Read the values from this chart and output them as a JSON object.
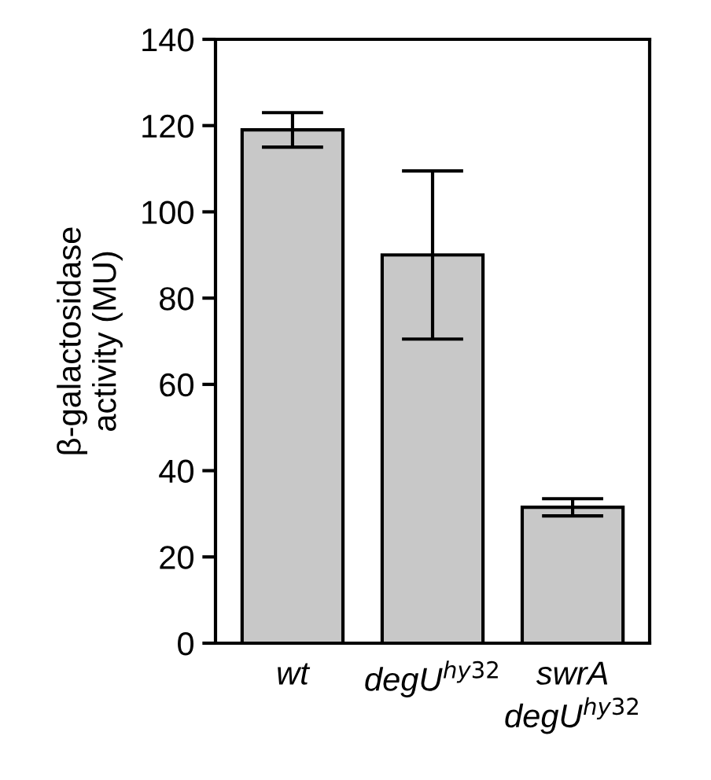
{
  "chart_data": {
    "type": "bar",
    "ylabel": "β-galactosidase\nactivity (MU)",
    "categories": [
      "wt",
      "degU$^{hy32}$",
      "swrA\ndegU$^{hy32}$"
    ],
    "values": [
      119,
      90,
      31.5
    ],
    "errors": [
      4,
      19.5,
      2
    ],
    "color": "#c8c8c8",
    "ylim": [
      0,
      140
    ],
    "yticks": [
      0,
      20,
      40,
      60,
      80,
      100,
      120,
      140
    ],
    "grid": false
  }
}
